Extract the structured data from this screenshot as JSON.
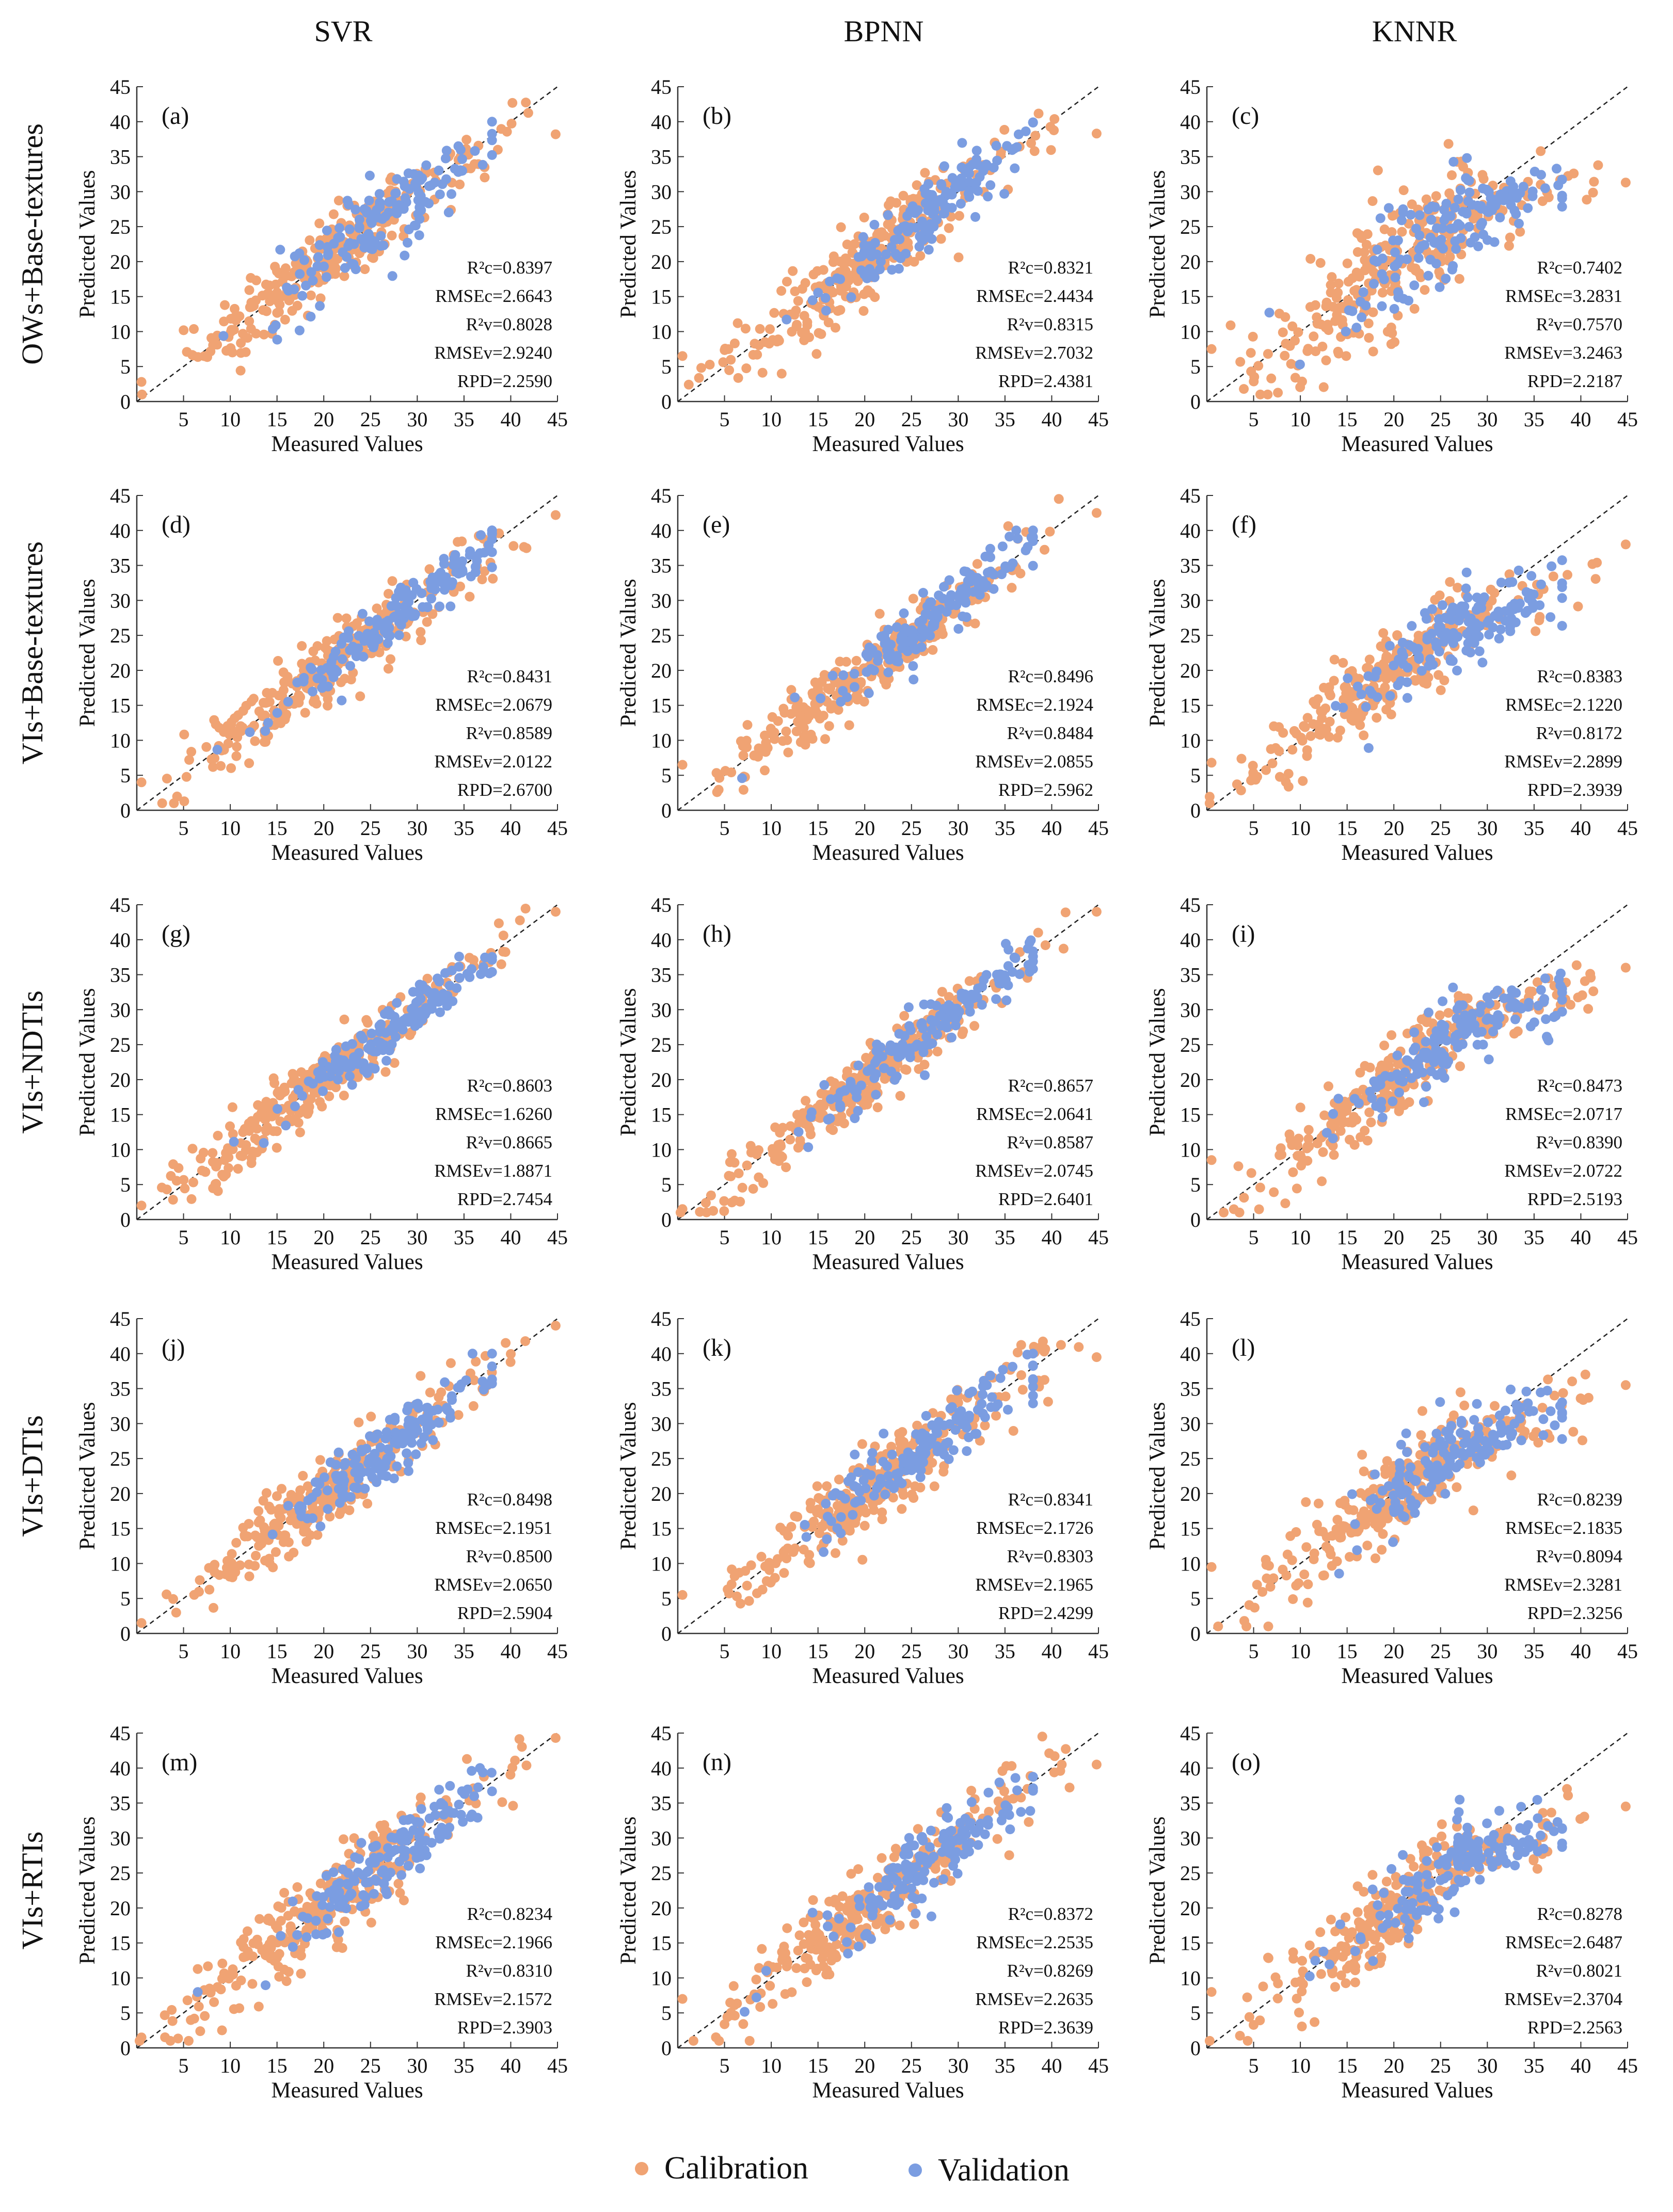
{
  "figure": {
    "column_titles": [
      "SVR",
      "BPNN",
      "KNNR"
    ],
    "row_titles": [
      "OWs+Base-textures",
      "VIs+Base-textures",
      "VIs+NDTIs",
      "VIs+DTIs",
      "VIs+RTIs"
    ],
    "legend": {
      "calibration": "Calibration",
      "validation": "Validation"
    },
    "colors": {
      "calibration": "#F0A373",
      "validation": "#7B9DE1",
      "line": "#222222"
    }
  },
  "chart_data": [
    {
      "panel": "(a)",
      "model": "SVR",
      "inputs": "OWs+Base-textures",
      "type": "scatter",
      "xlabel": "Measured Values",
      "ylabel": "Predicted Values",
      "xlim": [
        0,
        45
      ],
      "ylim": [
        0,
        45
      ],
      "xticks": [
        5,
        10,
        15,
        20,
        25,
        30,
        35,
        40,
        45
      ],
      "yticks": [
        0,
        5,
        10,
        15,
        20,
        25,
        30,
        35,
        40,
        45
      ],
      "reference_line": "1:1",
      "series": [
        {
          "name": "Calibration"
        },
        {
          "name": "Validation"
        }
      ],
      "stats": [
        "R²c=0.8397",
        "RMSEc=2.6643",
        "R²v=0.8028",
        "RMSEv=2.9240",
        "RPD=2.2590"
      ],
      "r2c": 0.8397,
      "r2v": 0.8028,
      "cal_max": [
        44.8,
        38.2
      ],
      "cal_min": [
        0.5,
        2.8
      ],
      "seed": 11
    },
    {
      "panel": "(b)",
      "model": "BPNN",
      "inputs": "OWs+Base-textures",
      "type": "scatter",
      "xlabel": "Measured Values",
      "ylabel": "Predicted Values",
      "xlim": [
        0,
        45
      ],
      "ylim": [
        0,
        45
      ],
      "xticks": [
        5,
        10,
        15,
        20,
        25,
        30,
        35,
        40,
        45
      ],
      "yticks": [
        0,
        5,
        10,
        15,
        20,
        25,
        30,
        35,
        40,
        45
      ],
      "reference_line": "1:1",
      "series": [
        {
          "name": "Calibration"
        },
        {
          "name": "Validation"
        }
      ],
      "stats": [
        "R²c=0.8321",
        "RMSEc=2.4434",
        "R²v=0.8315",
        "RMSEv=2.7032",
        "RPD=2.4381"
      ],
      "r2c": 0.8321,
      "r2v": 0.8315,
      "cal_max": [
        44.8,
        38.3
      ],
      "cal_min": [
        0.5,
        6.5
      ],
      "seed": 12
    },
    {
      "panel": "(c)",
      "model": "KNNR",
      "inputs": "OWs+Base-textures",
      "type": "scatter",
      "xlabel": "Measured Values",
      "ylabel": "Predicted Values",
      "xlim": [
        0,
        45
      ],
      "ylim": [
        0,
        45
      ],
      "xticks": [
        5,
        10,
        15,
        20,
        25,
        30,
        35,
        40,
        45
      ],
      "yticks": [
        0,
        5,
        10,
        15,
        20,
        25,
        30,
        35,
        40,
        45
      ],
      "reference_line": "1:1",
      "series": [
        {
          "name": "Calibration"
        },
        {
          "name": "Validation"
        }
      ],
      "stats": [
        "R²c=0.7402",
        "RMSEc=3.2831",
        "R²v=0.7570",
        "RMSEv=3.2463",
        "RPD=2.2187"
      ],
      "r2c": 0.7402,
      "r2v": 0.757,
      "cal_max": [
        44.8,
        31.3
      ],
      "cal_min": [
        0.5,
        7.5
      ],
      "seed": 13
    },
    {
      "panel": "(d)",
      "model": "SVR",
      "inputs": "VIs+Base-textures",
      "type": "scatter",
      "xlabel": "Measured Values",
      "ylabel": "Predicted Values",
      "xlim": [
        0,
        45
      ],
      "ylim": [
        0,
        45
      ],
      "xticks": [
        5,
        10,
        15,
        20,
        25,
        30,
        35,
        40,
        45
      ],
      "yticks": [
        0,
        5,
        10,
        15,
        20,
        25,
        30,
        35,
        40,
        45
      ],
      "reference_line": "1:1",
      "series": [
        {
          "name": "Calibration"
        },
        {
          "name": "Validation"
        }
      ],
      "stats": [
        "R²c=0.8431",
        "RMSEc=2.0679",
        "R²v=0.8589",
        "RMSEv=2.0122",
        "RPD=2.6700"
      ],
      "r2c": 0.8431,
      "r2v": 0.8589,
      "cal_max": [
        44.8,
        42.2
      ],
      "cal_min": [
        0.5,
        4.0
      ],
      "seed": 14
    },
    {
      "panel": "(e)",
      "model": "BPNN",
      "inputs": "VIs+Base-textures",
      "type": "scatter",
      "xlabel": "Measured Values",
      "ylabel": "Predicted Values",
      "xlim": [
        0,
        45
      ],
      "ylim": [
        0,
        45
      ],
      "xticks": [
        5,
        10,
        15,
        20,
        25,
        30,
        35,
        40,
        45
      ],
      "yticks": [
        0,
        5,
        10,
        15,
        20,
        25,
        30,
        35,
        40,
        45
      ],
      "reference_line": "1:1",
      "series": [
        {
          "name": "Calibration"
        },
        {
          "name": "Validation"
        }
      ],
      "stats": [
        "R²c=0.8496",
        "RMSEc=2.1924",
        "R²v=0.8484",
        "RMSEv=2.0855",
        "RPD=2.5962"
      ],
      "r2c": 0.8496,
      "r2v": 0.8484,
      "cal_max": [
        44.8,
        42.5
      ],
      "cal_min": [
        0.5,
        6.5
      ],
      "seed": 15
    },
    {
      "panel": "(f)",
      "model": "KNNR",
      "inputs": "VIs+Base-textures",
      "type": "scatter",
      "xlabel": "Measured Values",
      "ylabel": "Predicted Values",
      "xlim": [
        0,
        45
      ],
      "ylim": [
        0,
        45
      ],
      "xticks": [
        5,
        10,
        15,
        20,
        25,
        30,
        35,
        40,
        45
      ],
      "yticks": [
        0,
        5,
        10,
        15,
        20,
        25,
        30,
        35,
        40,
        45
      ],
      "reference_line": "1:1",
      "series": [
        {
          "name": "Calibration"
        },
        {
          "name": "Validation"
        }
      ],
      "stats": [
        "R²c=0.8383",
        "RMSEc=2.1220",
        "R²v=0.8172",
        "RMSEv=2.2899",
        "RPD=2.3939"
      ],
      "r2c": 0.8383,
      "r2v": 0.8172,
      "cal_max": [
        44.8,
        38.0
      ],
      "cal_min": [
        0.5,
        6.8
      ],
      "seed": 16
    },
    {
      "panel": "(g)",
      "model": "SVR",
      "inputs": "VIs+NDTIs",
      "type": "scatter",
      "xlabel": "Measured Values",
      "ylabel": "Predicted Values",
      "xlim": [
        0,
        45
      ],
      "ylim": [
        0,
        45
      ],
      "xticks": [
        5,
        10,
        15,
        20,
        25,
        30,
        35,
        40,
        45
      ],
      "yticks": [
        0,
        5,
        10,
        15,
        20,
        25,
        30,
        35,
        40,
        45
      ],
      "reference_line": "1:1",
      "series": [
        {
          "name": "Calibration"
        },
        {
          "name": "Validation"
        }
      ],
      "stats": [
        "R²c=0.8603",
        "RMSEc=1.6260",
        "R²v=0.8665",
        "RMSEv=1.8871",
        "RPD=2.7454"
      ],
      "r2c": 0.8603,
      "r2v": 0.8665,
      "cal_max": [
        44.8,
        44.0
      ],
      "cal_min": [
        0.5,
        2.0
      ],
      "seed": 17
    },
    {
      "panel": "(h)",
      "model": "BPNN",
      "inputs": "VIs+NDTIs",
      "type": "scatter",
      "xlabel": "Measured Values",
      "ylabel": "Predicted Values",
      "xlim": [
        0,
        45
      ],
      "ylim": [
        0,
        45
      ],
      "xticks": [
        5,
        10,
        15,
        20,
        25,
        30,
        35,
        40,
        45
      ],
      "yticks": [
        0,
        5,
        10,
        15,
        20,
        25,
        30,
        35,
        40,
        45
      ],
      "reference_line": "1:1",
      "series": [
        {
          "name": "Calibration"
        },
        {
          "name": "Validation"
        }
      ],
      "stats": [
        "R²c=0.8657",
        "RMSEc=2.0641",
        "R²v=0.8587",
        "RMSEv=2.0745",
        "RPD=2.6401"
      ],
      "r2c": 0.8657,
      "r2v": 0.8587,
      "cal_max": [
        44.8,
        44.0
      ],
      "cal_min": [
        0.5,
        1.5
      ],
      "seed": 18
    },
    {
      "panel": "(i)",
      "model": "KNNR",
      "inputs": "VIs+NDTIs",
      "type": "scatter",
      "xlabel": "Measured Values",
      "ylabel": "Predicted Values",
      "xlim": [
        0,
        45
      ],
      "ylim": [
        0,
        45
      ],
      "xticks": [
        5,
        10,
        15,
        20,
        25,
        30,
        35,
        40,
        45
      ],
      "yticks": [
        0,
        5,
        10,
        15,
        20,
        25,
        30,
        35,
        40,
        45
      ],
      "reference_line": "1:1",
      "series": [
        {
          "name": "Calibration"
        },
        {
          "name": "Validation"
        }
      ],
      "stats": [
        "R²c=0.8473",
        "RMSEc=2.0717",
        "R²v=0.8390",
        "RMSEv=2.0722",
        "RPD=2.5193"
      ],
      "r2c": 0.8473,
      "r2v": 0.839,
      "cal_max": [
        44.8,
        36.0
      ],
      "cal_min": [
        0.5,
        8.5
      ],
      "seed": 19
    },
    {
      "panel": "(j)",
      "model": "SVR",
      "inputs": "VIs+DTIs",
      "type": "scatter",
      "xlabel": "Measured Values",
      "ylabel": "Predicted Values",
      "xlim": [
        0,
        45
      ],
      "ylim": [
        0,
        45
      ],
      "xticks": [
        5,
        10,
        15,
        20,
        25,
        30,
        35,
        40,
        45
      ],
      "yticks": [
        0,
        5,
        10,
        15,
        20,
        25,
        30,
        35,
        40,
        45
      ],
      "reference_line": "1:1",
      "series": [
        {
          "name": "Calibration"
        },
        {
          "name": "Validation"
        }
      ],
      "stats": [
        "R²c=0.8498",
        "RMSEc=2.1951",
        "R²v=0.8500",
        "RMSEv=2.0650",
        "RPD=2.5904"
      ],
      "r2c": 0.8498,
      "r2v": 0.85,
      "cal_max": [
        44.8,
        44.0
      ],
      "cal_min": [
        0.5,
        1.5
      ],
      "seed": 20
    },
    {
      "panel": "(k)",
      "model": "BPNN",
      "inputs": "VIs+DTIs",
      "type": "scatter",
      "xlabel": "Measured Values",
      "ylabel": "Predicted Values",
      "xlim": [
        0,
        45
      ],
      "ylim": [
        0,
        45
      ],
      "xticks": [
        5,
        10,
        15,
        20,
        25,
        30,
        35,
        40,
        45
      ],
      "yticks": [
        0,
        5,
        10,
        15,
        20,
        25,
        30,
        35,
        40,
        45
      ],
      "reference_line": "1:1",
      "series": [
        {
          "name": "Calibration"
        },
        {
          "name": "Validation"
        }
      ],
      "stats": [
        "R²c=0.8341",
        "RMSEc=2.1726",
        "R²v=0.8303",
        "RMSEv=2.1965",
        "RPD=2.4299"
      ],
      "r2c": 0.8341,
      "r2v": 0.8303,
      "cal_max": [
        44.8,
        39.5
      ],
      "cal_min": [
        0.5,
        5.5
      ],
      "seed": 21
    },
    {
      "panel": "(l)",
      "model": "KNNR",
      "inputs": "VIs+DTIs",
      "type": "scatter",
      "xlabel": "Measured Values",
      "ylabel": "Predicted Values",
      "xlim": [
        0,
        45
      ],
      "ylim": [
        0,
        45
      ],
      "xticks": [
        5,
        10,
        15,
        20,
        25,
        30,
        35,
        40,
        45
      ],
      "yticks": [
        0,
        5,
        10,
        15,
        20,
        25,
        30,
        35,
        40,
        45
      ],
      "reference_line": "1:1",
      "series": [
        {
          "name": "Calibration"
        },
        {
          "name": "Validation"
        }
      ],
      "stats": [
        "R²c=0.8239",
        "RMSEc=2.1835",
        "R²v=0.8094",
        "RMSEv=2.3281",
        "RPD=2.3256"
      ],
      "r2c": 0.8239,
      "r2v": 0.8094,
      "cal_max": [
        44.8,
        35.5
      ],
      "cal_min": [
        0.5,
        9.5
      ],
      "seed": 22
    },
    {
      "panel": "(m)",
      "model": "SVR",
      "inputs": "VIs+RTIs",
      "type": "scatter",
      "xlabel": "Measured Values",
      "ylabel": "Predicted Values",
      "xlim": [
        0,
        45
      ],
      "ylim": [
        0,
        45
      ],
      "xticks": [
        5,
        10,
        15,
        20,
        25,
        30,
        35,
        40,
        45
      ],
      "yticks": [
        0,
        5,
        10,
        15,
        20,
        25,
        30,
        35,
        40,
        45
      ],
      "reference_line": "1:1",
      "series": [
        {
          "name": "Calibration"
        },
        {
          "name": "Validation"
        }
      ],
      "stats": [
        "R²c=0.8234",
        "RMSEc=2.1966",
        "R²v=0.8310",
        "RMSEv=2.1572",
        "RPD=2.3903"
      ],
      "r2c": 0.8234,
      "r2v": 0.831,
      "cal_max": [
        44.8,
        44.3
      ],
      "cal_min": [
        0.5,
        1.5
      ],
      "seed": 23
    },
    {
      "panel": "(n)",
      "model": "BPNN",
      "inputs": "VIs+RTIs",
      "type": "scatter",
      "xlabel": "Measured Values",
      "ylabel": "Predicted Values",
      "xlim": [
        0,
        45
      ],
      "ylim": [
        0,
        45
      ],
      "xticks": [
        5,
        10,
        15,
        20,
        25,
        30,
        35,
        40,
        45
      ],
      "yticks": [
        0,
        5,
        10,
        15,
        20,
        25,
        30,
        35,
        40,
        45
      ],
      "reference_line": "1:1",
      "series": [
        {
          "name": "Calibration"
        },
        {
          "name": "Validation"
        }
      ],
      "stats": [
        "R²c=0.8372",
        "RMSEc=2.2535",
        "R²v=0.8269",
        "RMSEv=2.2635",
        "RPD=2.3639"
      ],
      "r2c": 0.8372,
      "r2v": 0.8269,
      "cal_max": [
        44.8,
        40.5
      ],
      "cal_min": [
        0.5,
        7.0
      ],
      "seed": 24
    },
    {
      "panel": "(o)",
      "model": "KNNR",
      "inputs": "VIs+RTIs",
      "type": "scatter",
      "xlabel": "Measured Values",
      "ylabel": "Predicted Values",
      "xlim": [
        0,
        45
      ],
      "ylim": [
        0,
        45
      ],
      "xticks": [
        5,
        10,
        15,
        20,
        25,
        30,
        35,
        40,
        45
      ],
      "yticks": [
        0,
        5,
        10,
        15,
        20,
        25,
        30,
        35,
        40,
        45
      ],
      "reference_line": "1:1",
      "series": [
        {
          "name": "Calibration"
        },
        {
          "name": "Validation"
        }
      ],
      "stats": [
        "R²c=0.8278",
        "RMSEc=2.6487",
        "R²v=0.8021",
        "RMSEv=2.3704",
        "RPD=2.2563"
      ],
      "r2c": 0.8278,
      "r2v": 0.8021,
      "cal_max": [
        44.8,
        34.5
      ],
      "cal_min": [
        0.5,
        8.0
      ],
      "seed": 25
    }
  ]
}
